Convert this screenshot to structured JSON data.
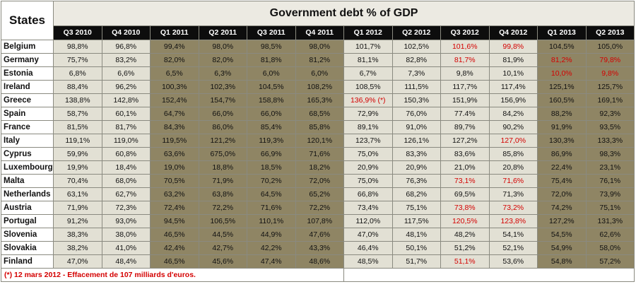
{
  "table": {
    "corner_label": "States",
    "title": "Government debt % of GDP",
    "footnote": "(*) 12 mars 2012 - Effacement de 107 milliards d'euros."
  },
  "chart_data": {
    "type": "table",
    "title": "Government debt % of GDP",
    "row_header": "States",
    "columns": [
      "Q3 2010",
      "Q4 2010",
      "Q1 2011",
      "Q2 2011",
      "Q3 2011",
      "Q4 2011",
      "Q1 2012",
      "Q2 2012",
      "Q3 2012",
      "Q4 2012",
      "Q1 2013",
      "Q2 2013"
    ],
    "column_shading": [
      "light",
      "light",
      "dark",
      "dark",
      "dark",
      "dark",
      "light",
      "light",
      "light",
      "light",
      "dark",
      "dark"
    ],
    "colors": {
      "header_bg": "#0d0d0d",
      "light_cell": "#e2e0d4",
      "dark_cell": "#8f8564",
      "highlight_text": "#d40000"
    },
    "rows": [
      {
        "state": "Belgium",
        "values": [
          "98,8%",
          "96,8%",
          "99,4%",
          "98,0%",
          "98,5%",
          "98,0%",
          "101,7%",
          "102,5%",
          "101,6%",
          "99,8%",
          "104,5%",
          "105,0%"
        ],
        "red": [
          8,
          9
        ]
      },
      {
        "state": "Germany",
        "values": [
          "75,7%",
          "83,2%",
          "82,0%",
          "82,0%",
          "81,8%",
          "81,2%",
          "81,1%",
          "82,8%",
          "81,7%",
          "81,9%",
          "81,2%",
          "79,8%"
        ],
        "red": [
          8,
          10,
          11
        ]
      },
      {
        "state": "Estonia",
        "values": [
          "6,8%",
          "6,6%",
          "6,5%",
          "6,3%",
          "6,0%",
          "6,0%",
          "6,7%",
          "7,3%",
          "9,8%",
          "10,1%",
          "10,0%",
          "9,8%"
        ],
        "red": [
          10,
          11
        ]
      },
      {
        "state": "Ireland",
        "values": [
          "88,4%",
          "96,2%",
          "100,3%",
          "102,3%",
          "104,5%",
          "108,2%",
          "108,5%",
          "111,5%",
          "117,7%",
          "117,4%",
          "125,1%",
          "125,7%"
        ],
        "red": []
      },
      {
        "state": "Greece",
        "values": [
          "138,8%",
          "142,8%",
          "152,4%",
          "154,7%",
          "158,8%",
          "165,3%",
          "136,9% (*)",
          "150,3%",
          "151,9%",
          "156,9%",
          "160,5%",
          "169,1%"
        ],
        "red": [
          6
        ]
      },
      {
        "state": "Spain",
        "values": [
          "58,7%",
          "60,1%",
          "64,7%",
          "66,0%",
          "66,0%",
          "68,5%",
          "72,9%",
          "76,0%",
          "77.4%",
          "84,2%",
          "88,2%",
          "92,3%"
        ],
        "red": []
      },
      {
        "state": "France",
        "values": [
          "81,5%",
          "81,7%",
          "84,3%",
          "86,0%",
          "85,4%",
          "85,8%",
          "89,1%",
          "91,0%",
          "89,7%",
          "90,2%",
          "91,9%",
          "93,5%"
        ],
        "red": []
      },
      {
        "state": "Italy",
        "values": [
          "119,1%",
          "119,0%",
          "119,5%",
          "121,2%",
          "119,3%",
          "120,1%",
          "123,7%",
          "126,1%",
          "127,2%",
          "127,0%",
          "130,3%",
          "133,3%"
        ],
        "red": [
          9
        ]
      },
      {
        "state": "Cyprus",
        "values": [
          "59,9%",
          "60,8%",
          "63,6%",
          "675,0%",
          "66,9%",
          "71,6%",
          "75,0%",
          "83,3%",
          "83,6%",
          "85,8%",
          "86,9%",
          "98,3%"
        ],
        "red": []
      },
      {
        "state": "Luxembourg",
        "values": [
          "19,9%",
          "18,4%",
          "19,0%",
          "18,8%",
          "18,5%",
          "18,2%",
          "20,9%",
          "20,9%",
          "21,0%",
          "20,8%",
          "22,4%",
          "23,1%"
        ],
        "red": []
      },
      {
        "state": "Malta",
        "values": [
          "70,4%",
          "68,0%",
          "70,5%",
          "71,9%",
          "70,2%",
          "72,0%",
          "75,0%",
          "76,3%",
          "73,1%",
          "71,6%",
          "75,4%",
          "76,1%"
        ],
        "red": [
          8,
          9
        ]
      },
      {
        "state": "Netherlands",
        "values": [
          "63,1%",
          "62,7%",
          "63,2%",
          "63,8%",
          "64,5%",
          "65,2%",
          "66,8%",
          "68,2%",
          "69,5%",
          "71,3%",
          "72,0%",
          "73,9%"
        ],
        "red": []
      },
      {
        "state": "Austria",
        "values": [
          "71,9%",
          "72,3%",
          "72,4%",
          "72,2%",
          "71,6%",
          "72,2%",
          "73,4%",
          "75,1%",
          "73,8%",
          "73,2%",
          "74,2%",
          "75,1%"
        ],
        "red": [
          8,
          9
        ]
      },
      {
        "state": "Portugal",
        "values": [
          "91,2%",
          "93,0%",
          "94,5%",
          "106,5%",
          "110,1%",
          "107,8%",
          "112,0%",
          "117,5%",
          "120,5%",
          "123,8%",
          "127,2%",
          "131,3%"
        ],
        "red": [
          8,
          9
        ]
      },
      {
        "state": "Slovenia",
        "values": [
          "38,3%",
          "38,0%",
          "46,5%",
          "44,5%",
          "44,9%",
          "47,6%",
          "47,0%",
          "48,1%",
          "48,2%",
          "54,1%",
          "54,5%",
          "62,6%"
        ],
        "red": []
      },
      {
        "state": "Slovakia",
        "values": [
          "38,2%",
          "41,0%",
          "42,4%",
          "42,7%",
          "42,2%",
          "43,3%",
          "46,4%",
          "50,1%",
          "51,2%",
          "52,1%",
          "54,9%",
          "58,0%"
        ],
        "red": []
      },
      {
        "state": "Finland",
        "values": [
          "47,0%",
          "48,4%",
          "46,5%",
          "45,6%",
          "47,4%",
          "48,6%",
          "48,5%",
          "51,7%",
          "51,1%",
          "53,6%",
          "54,8%",
          "57,2%"
        ],
        "red": [
          8
        ]
      }
    ]
  }
}
